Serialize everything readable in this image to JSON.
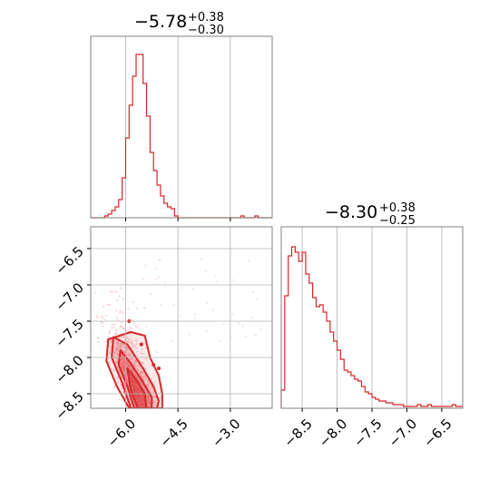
{
  "colors": {
    "series": "#d62728",
    "grid": "#b0b0b0",
    "frame": "#808080",
    "scatter": "#f4b6b7"
  },
  "chart_data": [
    {
      "type": "histogram",
      "panel": "marginal-x",
      "title_main": "−5.78",
      "title_sup": "+0.38",
      "title_sub": "−0.30",
      "xlim": [
        -7.0,
        -1.8
      ],
      "ylim": [
        0,
        1.0
      ],
      "gridlines_x": [
        -6.0,
        -4.5,
        -3.0
      ],
      "bin_edges_start": -7.0,
      "bin_width": 0.1,
      "values": [
        0,
        0,
        0,
        0,
        0.01,
        0.02,
        0.04,
        0.06,
        0.1,
        0.22,
        0.44,
        0.62,
        0.78,
        0.9,
        0.9,
        0.74,
        0.56,
        0.36,
        0.26,
        0.18,
        0.12,
        0.08,
        0.06,
        0.05,
        0.01,
        0,
        0,
        0,
        0,
        0,
        0,
        0,
        0,
        0,
        0,
        0,
        0,
        0,
        0,
        0,
        0,
        0,
        0,
        0.01,
        0,
        0,
        0,
        0.01,
        0,
        0,
        0,
        0
      ]
    },
    {
      "type": "histogram",
      "panel": "marginal-y",
      "title_main": "−8.30",
      "title_sup": "+0.38",
      "title_sub": "−0.25",
      "xlim": [
        -8.8,
        -6.2
      ],
      "ylim": [
        0,
        1.0
      ],
      "x_ticks": [
        -8.5,
        -8.0,
        -7.5,
        -7.0,
        -6.5
      ],
      "x_tick_labels": [
        "−8.5",
        "−8.0",
        "−7.5",
        "−7.0",
        "−6.5"
      ],
      "bin_edges_start": -8.8,
      "bin_width": 0.05,
      "values": [
        0.1,
        0.62,
        0.84,
        0.89,
        0.86,
        0.81,
        0.86,
        0.74,
        0.69,
        0.61,
        0.56,
        0.57,
        0.53,
        0.48,
        0.42,
        0.37,
        0.32,
        0.27,
        0.21,
        0.2,
        0.18,
        0.16,
        0.15,
        0.12,
        0.09,
        0.08,
        0.06,
        0.05,
        0.04,
        0.04,
        0.03,
        0.03,
        0.02,
        0.02,
        0.02,
        0.01,
        0.01,
        0.01,
        0.01,
        0.02,
        0.01,
        0.01,
        0.02,
        0.01,
        0.01,
        0.01,
        0.01,
        0.01,
        0.01,
        0.02,
        0.01,
        0.01
      ]
    },
    {
      "type": "scatter-contour",
      "panel": "joint",
      "xlim": [
        -7.0,
        -1.8
      ],
      "ylim": [
        -8.7,
        -6.2
      ],
      "x_ticks": [
        -6.0,
        -4.5,
        -3.0
      ],
      "x_tick_labels": [
        "−6.0",
        "−4.5",
        "−3.0"
      ],
      "y_ticks": [
        -6.5,
        -7.0,
        -7.5,
        -8.0,
        -8.5
      ],
      "y_tick_labels": [
        "−6.5",
        "−7.0",
        "−7.5",
        "−8.0",
        "−8.5"
      ],
      "contours": [
        [
          [
            -5.85,
            -7.65
          ],
          [
            -5.45,
            -7.7
          ],
          [
            -5.3,
            -8.0
          ],
          [
            -5.05,
            -8.25
          ],
          [
            -4.95,
            -8.5
          ],
          [
            -4.95,
            -8.7
          ],
          [
            -5.9,
            -8.7
          ],
          [
            -6.25,
            -8.4
          ],
          [
            -6.55,
            -8.05
          ],
          [
            -6.5,
            -7.75
          ]
        ],
        [
          [
            -6.35,
            -7.72
          ],
          [
            -5.95,
            -7.82
          ],
          [
            -5.5,
            -8.15
          ],
          [
            -5.2,
            -8.4
          ],
          [
            -5.05,
            -8.6
          ],
          [
            -5.1,
            -8.7
          ],
          [
            -5.85,
            -8.7
          ],
          [
            -6.1,
            -8.35
          ],
          [
            -6.4,
            -8.0
          ]
        ],
        [
          [
            -6.15,
            -7.9
          ],
          [
            -5.9,
            -8.05
          ],
          [
            -5.55,
            -8.3
          ],
          [
            -5.25,
            -8.55
          ],
          [
            -5.25,
            -8.7
          ],
          [
            -5.75,
            -8.7
          ],
          [
            -5.95,
            -8.4
          ],
          [
            -6.2,
            -8.1
          ]
        ],
        [
          [
            -5.95,
            -8.15
          ],
          [
            -5.7,
            -8.3
          ],
          [
            -5.45,
            -8.5
          ],
          [
            -5.4,
            -8.7
          ],
          [
            -5.65,
            -8.7
          ],
          [
            -5.85,
            -8.45
          ]
        ]
      ],
      "outlier_points": [
        [
          -5.9,
          -7.5
        ],
        [
          -5.55,
          -7.82
        ],
        [
          -5.2,
          -8.1
        ],
        [
          -5.05,
          -8.15
        ]
      ]
    }
  ]
}
